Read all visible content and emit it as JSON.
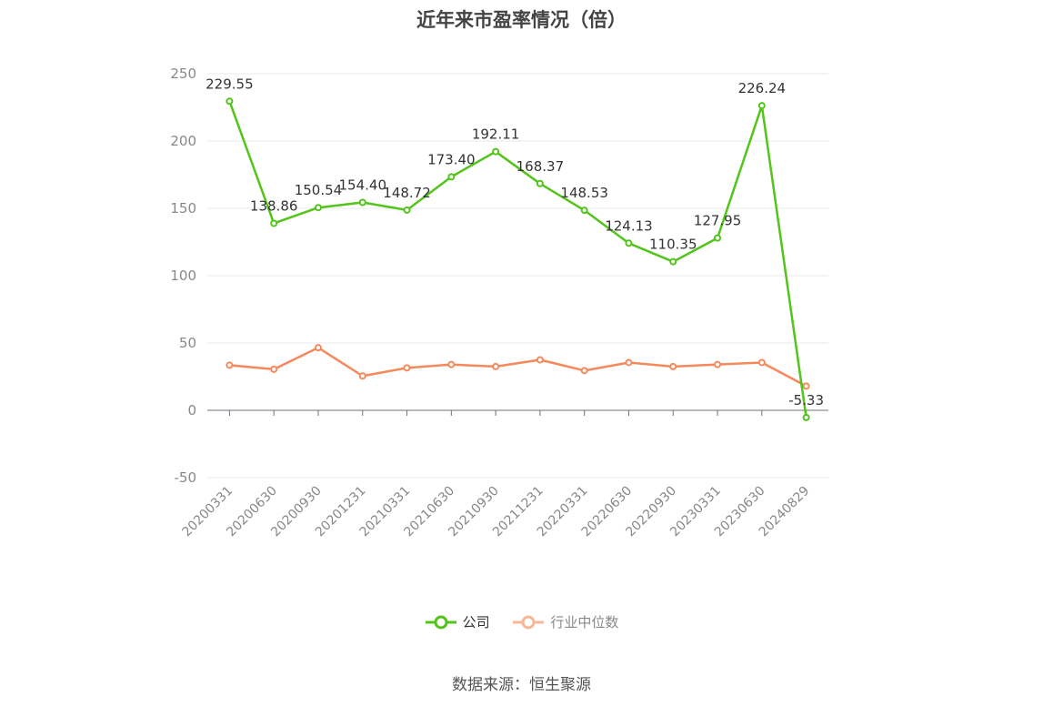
{
  "chart_data": {
    "type": "line",
    "title": "近年来市盈率情况（倍）",
    "categories": [
      "20200331",
      "20200630",
      "20200930",
      "20201231",
      "20210331",
      "20210630",
      "20210930",
      "20211231",
      "20220331",
      "20220630",
      "20220930",
      "20230331",
      "20230630",
      "20240829"
    ],
    "series": [
      {
        "name": "公司",
        "color": "#52c41a",
        "values": [
          229.55,
          138.86,
          150.54,
          154.4,
          148.72,
          173.4,
          192.11,
          168.37,
          148.53,
          124.13,
          110.35,
          127.95,
          226.24,
          -5.33
        ],
        "labels": [
          "229.55",
          "138.86",
          "150.54",
          "154.40",
          "148.72",
          "173.40",
          "192.11",
          "168.37",
          "148.53",
          "124.13",
          "110.35",
          "127.95",
          "226.24",
          "-5.33"
        ]
      },
      {
        "name": "行业中位数",
        "color": "#f5895b",
        "values": [
          33.5,
          30.5,
          46.5,
          25.5,
          31.5,
          34.0,
          32.5,
          37.5,
          29.5,
          35.5,
          32.5,
          34.0,
          35.5,
          18.0
        ]
      }
    ],
    "ylim": [
      -50,
      250
    ],
    "yticks": [
      "250",
      "200",
      "150",
      "100",
      "50",
      "0",
      "-50"
    ],
    "grid": true,
    "legend_position": "bottom"
  },
  "legend": {
    "company": "公司",
    "industry": "行业中位数"
  },
  "source": "数据来源：恒生聚源"
}
